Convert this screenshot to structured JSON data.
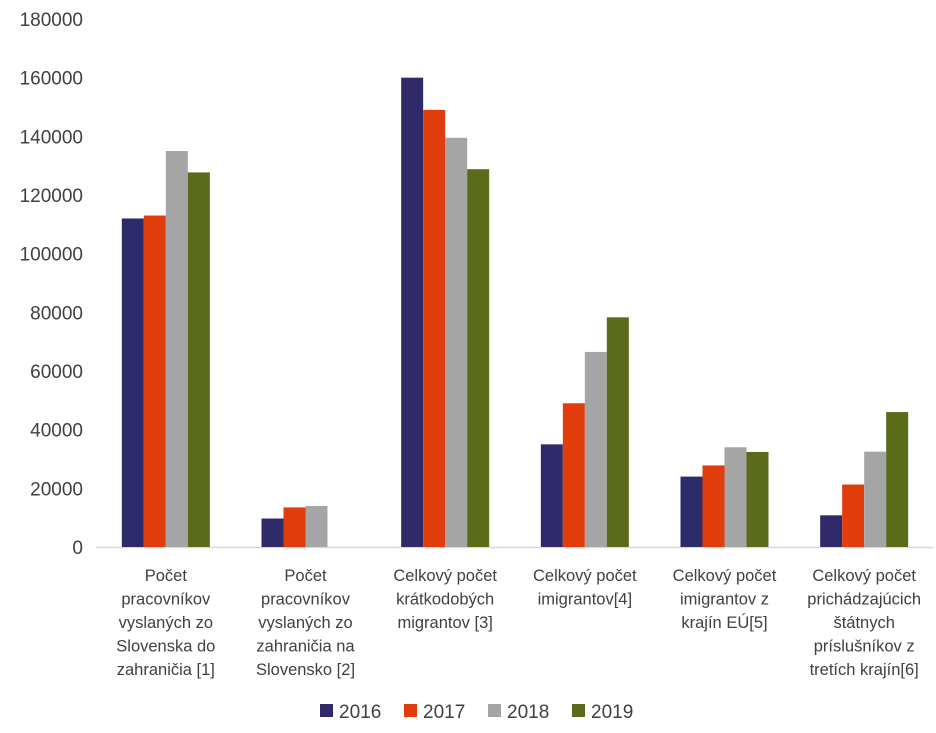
{
  "chart_data": {
    "type": "bar",
    "title": "",
    "xlabel": "",
    "ylabel": "",
    "ylim": [
      0,
      180000
    ],
    "yticks": [
      "0",
      "20000",
      "40000",
      "60000",
      "80000",
      "100000",
      "120000",
      "140000",
      "160000",
      "180000"
    ],
    "grid": false,
    "legend_position": "bottom",
    "categories": [
      [
        "Počet",
        "pracovníkov",
        "vyslaných zo",
        "Slovenska do",
        "zahraničia [1]"
      ],
      [
        "Počet",
        "pracovníkov",
        "vyslaných zo",
        "zahraničia na",
        "Slovensko [2]"
      ],
      [
        "Celkový počet",
        "krátkodobých",
        "migrantov [3]"
      ],
      [
        "Celkový počet",
        "imigrantov[4]"
      ],
      [
        "Celkový počet",
        "imigrantov z",
        "krajín EÚ[5]"
      ],
      [
        "Celkový počet",
        "prichádzajúcich",
        "štátnych",
        "príslušníkov z",
        "tretích krajín[6]"
      ]
    ],
    "series": [
      {
        "name": "2016",
        "color": "#2f2b6b",
        "values": [
          112000,
          9700,
          160000,
          35000,
          24000,
          10800
        ]
      },
      {
        "name": "2017",
        "color": "#e03c0c",
        "values": [
          113000,
          13500,
          149000,
          49000,
          27800,
          21300
        ]
      },
      {
        "name": "2018",
        "color": "#a5a5a5",
        "values": [
          135000,
          14000,
          139500,
          66500,
          34000,
          32500
        ]
      },
      {
        "name": "2019",
        "color": "#5a6b1a",
        "values": [
          127700,
          null,
          128800,
          78300,
          32400,
          46000
        ]
      }
    ]
  }
}
